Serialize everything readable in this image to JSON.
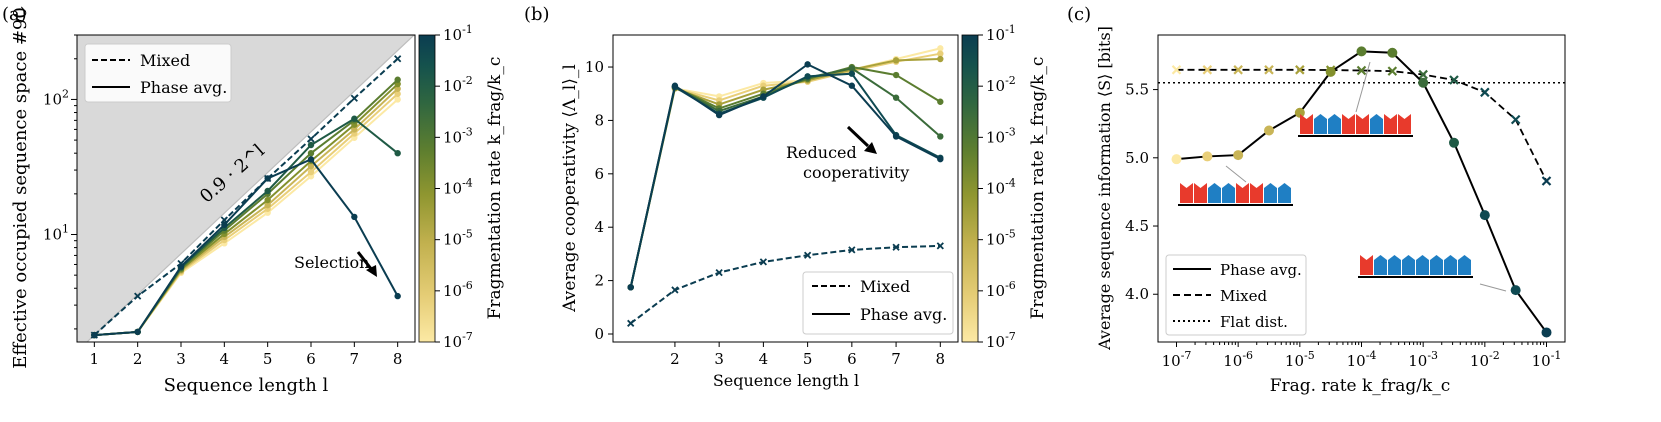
{
  "colors": {
    "cmap": [
      "#fce9a4",
      "#e9cf79",
      "#c9b557",
      "#a9a13b",
      "#83902d",
      "#5b7d30",
      "#3a6b3a",
      "#1f5a45",
      "#0f4a52",
      "#0b3d51"
    ],
    "shade": "#d9d9d9",
    "text": "#000000"
  },
  "colorbar": {
    "label": "Fragmentation rate k_frag/k_c",
    "ticks": [
      "10^-1",
      "10^-2",
      "10^-3",
      "10^-4",
      "10^-5",
      "10^-6",
      "10^-7"
    ]
  },
  "chart_data": [
    {
      "panel": "(a)",
      "type": "line",
      "xlabel": "Sequence length l",
      "ylabel": "Effective occupied sequence space #90",
      "yscale": "log",
      "xlim": [
        0.6,
        8.4
      ],
      "ylim": [
        1.6,
        300
      ],
      "x": [
        1,
        2,
        3,
        4,
        5,
        6,
        7,
        8
      ],
      "reference_line": {
        "label": "0.9 · 2^l",
        "factor": 0.9
      },
      "legend": {
        "position": "top-left",
        "entries": [
          "Mixed",
          "Phase avg."
        ]
      },
      "annotation": "Selection",
      "series": [
        {
          "name": "Phase avg. k=1e-7",
          "style": "solid",
          "color_index": 0,
          "values": [
            1.8,
            1.9,
            5.2,
            8.6,
            14.5,
            27,
            52,
            100
          ]
        },
        {
          "name": "Phase avg. k=1e-6",
          "style": "solid",
          "color_index": 1,
          "values": [
            1.8,
            1.9,
            5.3,
            9.1,
            15.5,
            29,
            56,
            110
          ]
        },
        {
          "name": "Phase avg. k=1e-5",
          "style": "solid",
          "color_index": 2,
          "values": [
            1.8,
            1.9,
            5.4,
            9.6,
            16.5,
            32,
            60,
            120
          ]
        },
        {
          "name": "Phase avg. k=1e-4",
          "style": "solid",
          "color_index": 4,
          "values": [
            1.8,
            1.9,
            5.5,
            10.1,
            18,
            35,
            65,
            130
          ]
        },
        {
          "name": "Phase avg. k=1e-3",
          "style": "solid",
          "color_index": 5,
          "values": [
            1.8,
            1.9,
            5.6,
            10.7,
            20,
            40,
            70,
            140
          ]
        },
        {
          "name": "Phase avg. k=1e-2",
          "style": "solid",
          "color_index": 7,
          "values": [
            1.8,
            1.9,
            5.7,
            11.2,
            21,
            46,
            72,
            40
          ]
        },
        {
          "name": "Phase avg. k=1e-1",
          "style": "solid",
          "color_index": 9,
          "values": [
            1.8,
            1.9,
            5.8,
            11.8,
            26,
            36,
            13.5,
            3.5
          ]
        },
        {
          "name": "Mixed",
          "style": "dashed",
          "color_index": 9,
          "values": [
            1.8,
            3.5,
            6.1,
            12.8,
            26,
            51,
            102,
            200
          ]
        }
      ]
    },
    {
      "panel": "(b)",
      "type": "line",
      "xlabel": "Sequence length l",
      "ylabel": "Average cooperativity ⟨Λ_l⟩_l",
      "xlim": [
        0.6,
        8.4
      ],
      "ylim": [
        -0.3,
        11.2
      ],
      "x": [
        1,
        2,
        3,
        4,
        5,
        6,
        7,
        8
      ],
      "xticks": [
        "2",
        "3",
        "4",
        "5",
        "6",
        "7",
        "8"
      ],
      "yticks": [
        "0",
        "2",
        "4",
        "6",
        "8",
        "10"
      ],
      "legend": {
        "position": "bottom-right",
        "entries": [
          "Mixed",
          "Phase avg."
        ]
      },
      "annotation": "Reduced cooperativity",
      "series": [
        {
          "name": "Phase avg. k=1e-7",
          "style": "solid",
          "color_index": 0,
          "values": [
            1.75,
            9.2,
            8.9,
            9.4,
            9.5,
            9.9,
            10.3,
            10.7
          ]
        },
        {
          "name": "Phase avg. k=1e-6",
          "style": "solid",
          "color_index": 1,
          "values": [
            1.75,
            9.2,
            8.75,
            9.3,
            9.45,
            9.85,
            10.2,
            10.5
          ]
        },
        {
          "name": "Phase avg. k=1e-5",
          "style": "solid",
          "color_index": 3,
          "values": [
            1.75,
            9.2,
            8.6,
            9.15,
            9.5,
            9.9,
            10.25,
            10.3
          ]
        },
        {
          "name": "Phase avg. k=1e-4",
          "style": "solid",
          "color_index": 5,
          "values": [
            1.75,
            9.25,
            8.45,
            9.0,
            9.55,
            10.0,
            9.7,
            8.7
          ]
        },
        {
          "name": "Phase avg. k=1e-3",
          "style": "solid",
          "color_index": 6,
          "values": [
            1.75,
            9.25,
            8.35,
            8.9,
            9.6,
            9.95,
            8.85,
            7.4
          ]
        },
        {
          "name": "Phase avg. k=1e-2",
          "style": "solid",
          "color_index": 8,
          "values": [
            1.75,
            9.25,
            8.25,
            8.85,
            9.65,
            9.75,
            7.45,
            6.6
          ]
        },
        {
          "name": "Phase avg. k=1e-1",
          "style": "solid",
          "color_index": 9,
          "values": [
            1.75,
            9.3,
            8.2,
            8.9,
            10.1,
            9.3,
            7.4,
            6.55
          ]
        },
        {
          "name": "Mixed",
          "style": "dashed",
          "color_index": 9,
          "values": [
            0.4,
            1.65,
            2.3,
            2.7,
            2.95,
            3.15,
            3.25,
            3.3
          ]
        }
      ]
    },
    {
      "panel": "(c)",
      "type": "line",
      "xlabel": "Frag. rate k_frag/k_c",
      "ylabel": "Average sequence information ⟨S⟩ [bits]",
      "xscale": "log",
      "xlim_exp": [
        -7.3,
        -0.7
      ],
      "ylim": [
        3.65,
        5.9
      ],
      "xticks": [
        "10^-7",
        "10^-6",
        "10^-5",
        "10^-4",
        "10^-3",
        "10^-2",
        "10^-1"
      ],
      "yticks": [
        "4.0",
        "4.5",
        "5.0",
        "5.5"
      ],
      "legend": {
        "position": "bottom-left",
        "entries": [
          "Phase avg.",
          "Mixed",
          "Flat dist."
        ]
      },
      "x_exp": [
        -7,
        -6.5,
        -6,
        -5.5,
        -5,
        -4.5,
        -4,
        -3.5,
        -3,
        -2.5,
        -2,
        -1.5,
        -1
      ],
      "series": [
        {
          "name": "Phase avg.",
          "style": "solid",
          "values": [
            4.99,
            5.01,
            5.02,
            5.2,
            5.33,
            5.63,
            5.78,
            5.77,
            5.55,
            5.11,
            4.58,
            4.03,
            3.72
          ]
        },
        {
          "name": "Mixed",
          "style": "dashed",
          "values": [
            5.645,
            5.645,
            5.645,
            5.645,
            5.645,
            5.643,
            5.64,
            5.635,
            5.61,
            5.57,
            5.48,
            5.28,
            4.83
          ]
        },
        {
          "name": "Flat dist.",
          "style": "dotted",
          "values": [
            5.55,
            5.55
          ]
        }
      ]
    }
  ],
  "panel_c_insets": [
    {
      "pattern": [
        "red",
        "red",
        "blue",
        "blue",
        "red",
        "red",
        "blue",
        "blue"
      ]
    },
    {
      "pattern": [
        "red",
        "blue",
        "blue",
        "red",
        "red",
        "blue",
        "red",
        "red"
      ]
    },
    {
      "pattern": [
        "red",
        "blue",
        "blue",
        "blue",
        "blue",
        "blue",
        "blue",
        "blue"
      ]
    }
  ]
}
